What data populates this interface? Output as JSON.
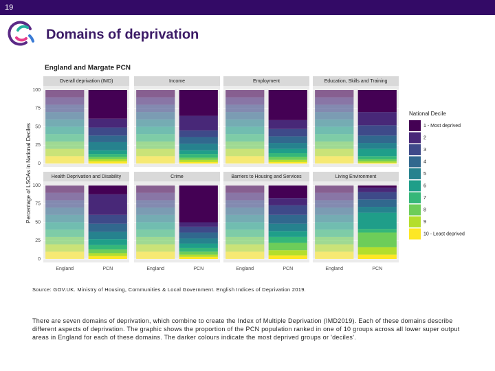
{
  "slide_number": "19",
  "title": "Domains of deprivation",
  "chart_data": {
    "type": "stacked-bar",
    "title": "England and Margate PCN",
    "ylabel": "Percentage of LSOAs in National Deciles",
    "categories": [
      "England",
      "PCN"
    ],
    "category_opacity": [
      0.6,
      1
    ],
    "ylim": [
      0,
      100
    ],
    "yticks": [
      0,
      25,
      50,
      75,
      100
    ],
    "grid": true,
    "legend_title": "National Decile",
    "legend_position": "right",
    "deciles": [
      {
        "name": "1 - Most deprived",
        "color": "#440154"
      },
      {
        "name": "2",
        "color": "#482878"
      },
      {
        "name": "3",
        "color": "#3e4a89"
      },
      {
        "name": "4",
        "color": "#31688e"
      },
      {
        "name": "5",
        "color": "#26828e"
      },
      {
        "name": "6",
        "color": "#1f9e89"
      },
      {
        "name": "7",
        "color": "#35b779"
      },
      {
        "name": "8",
        "color": "#6dcd59"
      },
      {
        "name": "9",
        "color": "#b4de2c"
      },
      {
        "name": "10 - Least deprived",
        "color": "#fde725"
      }
    ],
    "facets": [
      {
        "title": "Overall deprivation (IMD)",
        "values": [
          [
            10,
            10,
            10,
            10,
            10,
            10,
            10,
            10,
            10,
            10
          ],
          [
            39,
            12,
            11,
            9,
            11,
            5,
            4,
            3,
            3,
            3
          ]
        ]
      },
      {
        "title": "Income",
        "values": [
          [
            10,
            10,
            10,
            10,
            10,
            10,
            10,
            10,
            10,
            10
          ],
          [
            35,
            20,
            9,
            9,
            9,
            5,
            5,
            3,
            3,
            2
          ]
        ]
      },
      {
        "title": "Employment",
        "values": [
          [
            10,
            10,
            10,
            10,
            10,
            10,
            10,
            10,
            10,
            10
          ],
          [
            41,
            12,
            10,
            9,
            8,
            6,
            5,
            4,
            3,
            2
          ]
        ]
      },
      {
        "title": "Education, Skills and Training",
        "values": [
          [
            10,
            10,
            10,
            10,
            10,
            10,
            10,
            10,
            10,
            10
          ],
          [
            30,
            18,
            14,
            10,
            8,
            10,
            4,
            3,
            2,
            1
          ]
        ]
      },
      {
        "title": "Health Deprivation and Disability",
        "values": [
          [
            10,
            10,
            10,
            10,
            10,
            10,
            10,
            10,
            10,
            10
          ],
          [
            12,
            28,
            12,
            11,
            10,
            8,
            6,
            5,
            4,
            4
          ]
        ]
      },
      {
        "title": "Crime",
        "values": [
          [
            10,
            10,
            10,
            10,
            10,
            10,
            10,
            10,
            10,
            10
          ],
          [
            50,
            6,
            8,
            8,
            7,
            6,
            5,
            4,
            3,
            3
          ]
        ]
      },
      {
        "title": "Barriers to Housing and Services",
        "values": [
          [
            10,
            10,
            10,
            10,
            10,
            10,
            10,
            10,
            10,
            10
          ],
          [
            17,
            10,
            13,
            12,
            10,
            8,
            8,
            10,
            7,
            5
          ]
        ]
      },
      {
        "title": "Living Environment",
        "values": [
          [
            10,
            10,
            10,
            10,
            10,
            10,
            10,
            10,
            10,
            10
          ],
          [
            3,
            6,
            10,
            10,
            8,
            22,
            5,
            20,
            10,
            6
          ]
        ]
      }
    ]
  },
  "source": "Source: GOV.UK. Ministry of Housing, Communities & Local Government. English Indices of Deprivation 2019.",
  "body": "There are seven domains of deprivation, which combine to create the Index of Multiple Deprivation (IMD2019). Each of these domains describe different aspects of deprivation. The graphic shows the proportion of the PCN population ranked in one of 10 groups across all lower super output areas in England for each of these domains. The darker colours indicate the most deprived groups or 'deciles'."
}
